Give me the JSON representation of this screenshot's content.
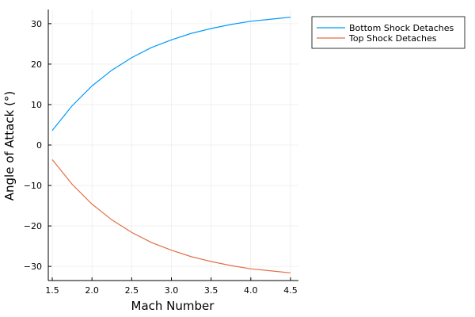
{
  "chart_data": {
    "type": "line",
    "xlabel": "Mach Number",
    "ylabel": "Angle of Attack (°)",
    "xlim": [
      1.45,
      4.6
    ],
    "ylim": [
      -33.5,
      33.5
    ],
    "x_ticks": [
      1.5,
      2.0,
      2.5,
      3.0,
      3.5,
      4.0,
      4.5
    ],
    "x_tick_labels": [
      "1.5",
      "2.0",
      "2.5",
      "3.0",
      "3.5",
      "4.0",
      "4.5"
    ],
    "y_ticks": [
      -30,
      -20,
      -10,
      0,
      10,
      20,
      30
    ],
    "y_tick_labels": [
      "−30",
      "−20",
      "−10",
      "0",
      "10",
      "20",
      "30"
    ],
    "grid": true,
    "legend_position": "outside-top-right",
    "x": [
      1.5,
      1.75,
      2.0,
      2.25,
      2.5,
      2.75,
      3.0,
      3.25,
      3.5,
      3.75,
      4.0,
      4.25,
      4.5
    ],
    "series": [
      {
        "name": "Bottom Shock Detaches",
        "color": "#009AFA",
        "values": [
          3.6,
          9.7,
          14.6,
          18.5,
          21.6,
          24.1,
          26.0,
          27.6,
          28.8,
          29.8,
          30.6,
          31.1,
          31.6
        ]
      },
      {
        "name": "Top Shock Detaches",
        "color": "#E26F46",
        "values": [
          -3.6,
          -9.7,
          -14.6,
          -18.5,
          -21.6,
          -24.1,
          -26.0,
          -27.6,
          -28.8,
          -29.8,
          -30.6,
          -31.1,
          -31.6
        ]
      }
    ]
  }
}
